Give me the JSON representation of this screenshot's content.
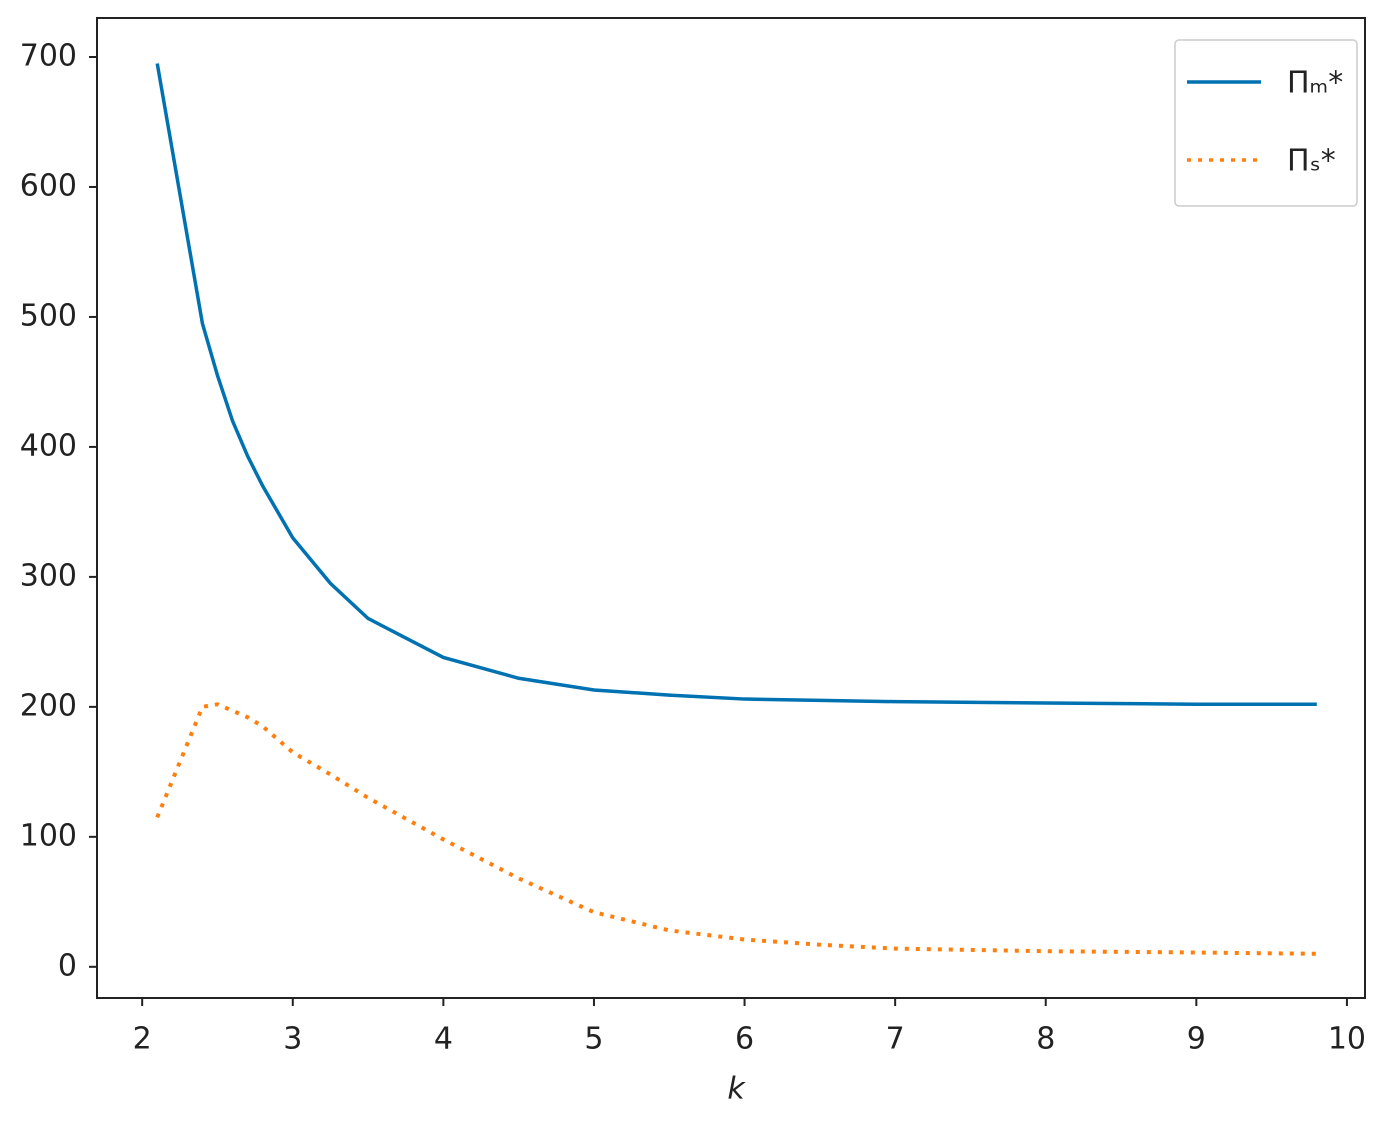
{
  "chart_data": {
    "type": "line",
    "x_label": "k",
    "x": [
      2.1,
      2.4,
      2.5,
      2.6,
      2.7,
      2.8,
      3.0,
      3.25,
      3.5,
      4.0,
      4.5,
      5.0,
      5.5,
      6.0,
      6.5,
      7.0,
      8.0,
      9.0,
      9.8
    ],
    "series": [
      {
        "name": "Πₘ*",
        "color": "#0072b2",
        "style": "solid",
        "values": [
          695,
          495,
          455,
          420,
          393,
          370,
          330,
          295,
          268,
          238,
          222,
          213,
          209,
          206,
          205,
          204,
          203,
          202,
          202
        ]
      },
      {
        "name": "Πₛ*",
        "color": "#ff7f0e",
        "style": "dotted",
        "values": [
          115,
          200,
          202,
          197,
          192,
          185,
          165,
          148,
          130,
          98,
          68,
          42,
          28,
          21,
          17,
          14,
          12,
          11,
          10
        ]
      }
    ],
    "xlim": [
      1.7,
      10.12
    ],
    "ylim": [
      -24,
      730
    ],
    "xticks": [
      2,
      3,
      4,
      5,
      6,
      7,
      8,
      9,
      10
    ],
    "yticks": [
      0,
      100,
      200,
      300,
      400,
      500,
      600,
      700
    ],
    "legend": "upper right",
    "grid": false
  }
}
